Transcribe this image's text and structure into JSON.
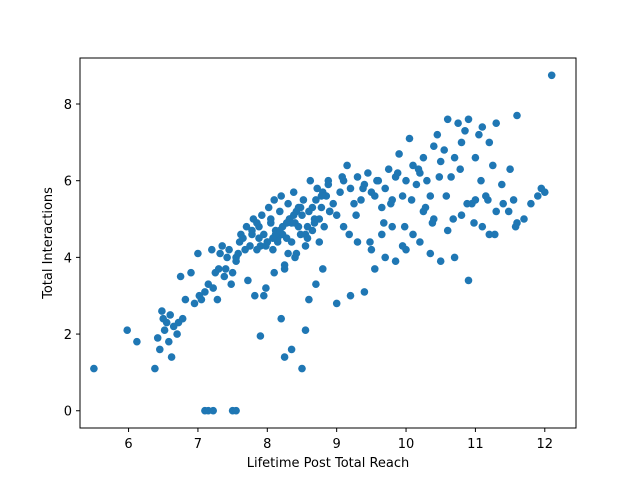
{
  "chart_data": {
    "type": "scatter",
    "xlabel": "Lifetime Post Total Reach",
    "ylabel": "Total Interactions",
    "xlim": [
      5.3,
      12.45
    ],
    "ylim": [
      -0.45,
      9.2
    ],
    "xticks": [
      "6",
      "7",
      "8",
      "9",
      "10",
      "11",
      "12"
    ],
    "yticks": [
      "0",
      "2",
      "4",
      "6",
      "8"
    ],
    "grid": false,
    "marker_color": "#1f77b4",
    "x": [
      5.5,
      5.98,
      6.12,
      6.38,
      6.42,
      6.45,
      6.48,
      6.5,
      6.52,
      6.55,
      6.58,
      6.6,
      6.62,
      6.65,
      6.7,
      6.72,
      6.75,
      6.78,
      6.82,
      6.9,
      6.95,
      7.0,
      7.02,
      7.05,
      7.1,
      7.15,
      7.2,
      7.22,
      7.25,
      7.28,
      7.3,
      7.32,
      7.35,
      7.38,
      7.4,
      7.42,
      7.45,
      7.48,
      7.5,
      7.55,
      7.55,
      7.58,
      7.6,
      7.62,
      7.65,
      7.68,
      7.7,
      7.72,
      7.75,
      7.78,
      7.8,
      7.82,
      7.85,
      7.88,
      7.9,
      7.92,
      7.95,
      7.98,
      8.0,
      8.02,
      8.05,
      8.08,
      8.1,
      8.12,
      8.15,
      8.18,
      8.2,
      8.22,
      8.25,
      8.28,
      8.3,
      8.32,
      8.35,
      8.38,
      8.4,
      8.42,
      8.45,
      8.48,
      8.5,
      8.52,
      8.55,
      8.58,
      8.6,
      8.62,
      8.65,
      8.68,
      8.7,
      8.72,
      8.75,
      8.78,
      8.8,
      8.82,
      8.85,
      8.88,
      8.9,
      8.95,
      9.0,
      9.05,
      9.1,
      9.15,
      9.2,
      9.25,
      9.3,
      9.35,
      9.4,
      9.45,
      9.5,
      9.55,
      9.6,
      9.65,
      9.7,
      9.75,
      9.8,
      9.85,
      9.9,
      9.95,
      10.0,
      10.05,
      10.1,
      10.15,
      10.2,
      10.25,
      10.3,
      10.35,
      10.4,
      10.45,
      10.5,
      10.55,
      10.6,
      10.65,
      10.7,
      10.75,
      10.8,
      10.85,
      10.9,
      10.95,
      11.0,
      11.05,
      11.1,
      11.15,
      11.2,
      11.25,
      11.3,
      11.4,
      11.5,
      11.55,
      11.6,
      11.7,
      11.8,
      11.9,
      11.95,
      12.0,
      12.1,
      7.1,
      7.15,
      7.22,
      7.5,
      7.55,
      7.9,
      8.25,
      8.35,
      8.55,
      8.5,
      8.6,
      8.2,
      8.1,
      7.95,
      8.7,
      8.8,
      9.0,
      9.2,
      9.4,
      9.55,
      9.7,
      9.85,
      10.0,
      10.2,
      10.35,
      10.5,
      10.7,
      10.9,
      11.1,
      11.2,
      8.15,
      8.3,
      8.45,
      8.05,
      7.85,
      8.65,
      8.35,
      8.0,
      8.25,
      8.4,
      8.55,
      8.75,
      8.9,
      9.1,
      9.3,
      9.5,
      9.65,
      9.8,
      9.95,
      10.1,
      10.25,
      10.4,
      10.6,
      10.8,
      11.0,
      11.3,
      11.6,
      8.12,
      8.22,
      8.32,
      8.42,
      8.18,
      8.28,
      8.38,
      8.48,
      8.08,
      7.98,
      7.88,
      7.78,
      8.58,
      8.68,
      8.78,
      8.88,
      9.08,
      9.18,
      9.28,
      9.38,
      9.48,
      9.58,
      9.68,
      9.78,
      9.88,
      9.98,
      10.08,
      10.18,
      10.28,
      10.38,
      10.48,
      10.58,
      10.68,
      10.78,
      10.88,
      10.98,
      11.08,
      11.18,
      11.28,
      11.38,
      11.48,
      11.58
    ],
    "y": [
      1.1,
      2.1,
      1.8,
      1.1,
      1.9,
      1.6,
      2.6,
      2.4,
      2.1,
      2.3,
      1.8,
      2.5,
      1.4,
      2.2,
      2.0,
      2.3,
      3.5,
      2.4,
      2.9,
      3.6,
      2.8,
      4.1,
      3.0,
      2.9,
      3.1,
      3.3,
      4.2,
      3.2,
      3.6,
      2.9,
      3.7,
      4.1,
      4.3,
      3.5,
      3.7,
      4.0,
      4.2,
      3.3,
      3.6,
      4.0,
      3.9,
      4.1,
      4.4,
      4.6,
      4.5,
      4.2,
      4.8,
      3.4,
      4.3,
      4.7,
      5.0,
      3.0,
      4.9,
      4.5,
      4.3,
      5.1,
      4.6,
      3.2,
      4.4,
      5.3,
      4.9,
      4.2,
      5.5,
      4.7,
      4.4,
      5.2,
      5.6,
      4.6,
      3.8,
      4.5,
      5.4,
      5.0,
      4.4,
      5.7,
      4.9,
      4.1,
      5.3,
      4.6,
      5.1,
      5.5,
      4.3,
      4.8,
      5.2,
      6.0,
      4.7,
      5.0,
      5.5,
      5.8,
      4.4,
      5.3,
      5.7,
      4.8,
      5.6,
      6.0,
      5.2,
      5.4,
      5.1,
      5.7,
      6.0,
      6.4,
      5.8,
      5.4,
      6.1,
      5.5,
      5.9,
      6.2,
      5.7,
      5.6,
      6.0,
      5.3,
      5.8,
      6.3,
      5.5,
      6.1,
      6.7,
      5.6,
      6.0,
      7.1,
      6.4,
      5.9,
      6.2,
      6.6,
      6.0,
      5.6,
      6.9,
      7.2,
      6.5,
      6.8,
      7.6,
      6.1,
      6.6,
      7.5,
      7.0,
      7.3,
      7.6,
      5.4,
      6.6,
      7.2,
      7.4,
      5.6,
      7.0,
      6.4,
      7.5,
      5.4,
      6.3,
      5.5,
      7.7,
      5.0,
      5.4,
      5.6,
      5.8,
      5.7,
      8.75,
      0.0,
      0.0,
      0.0,
      0.0,
      0.0,
      1.95,
      1.4,
      1.6,
      2.1,
      1.1,
      2.9,
      2.4,
      3.6,
      3.0,
      3.3,
      3.7,
      2.8,
      3.0,
      3.1,
      3.7,
      4.0,
      3.9,
      4.2,
      4.4,
      4.1,
      3.9,
      4.0,
      3.4,
      4.8,
      4.6,
      4.5,
      4.1,
      4.8,
      5.0,
      4.2,
      5.3,
      4.9,
      4.4,
      3.7,
      4.0,
      4.6,
      5.0,
      5.2,
      4.8,
      4.4,
      4.2,
      4.6,
      4.8,
      4.3,
      4.6,
      5.2,
      5.0,
      4.7,
      5.1,
      5.5,
      5.2,
      4.9,
      4.6,
      4.8,
      5.0,
      5.2,
      4.7,
      4.9,
      5.1,
      5.3,
      4.5,
      4.3,
      4.8,
      4.6,
      4.5,
      4.9,
      5.6,
      5.9,
      6.1,
      4.6,
      5.1,
      5.8,
      4.4,
      6.0,
      4.9,
      5.4,
      6.2,
      4.8,
      5.5,
      6.3,
      5.3,
      4.9,
      6.1,
      5.6,
      5.0,
      6.3,
      5.4,
      4.9,
      6.0,
      5.5,
      4.6,
      5.9,
      5.2,
      4.8
    ]
  }
}
